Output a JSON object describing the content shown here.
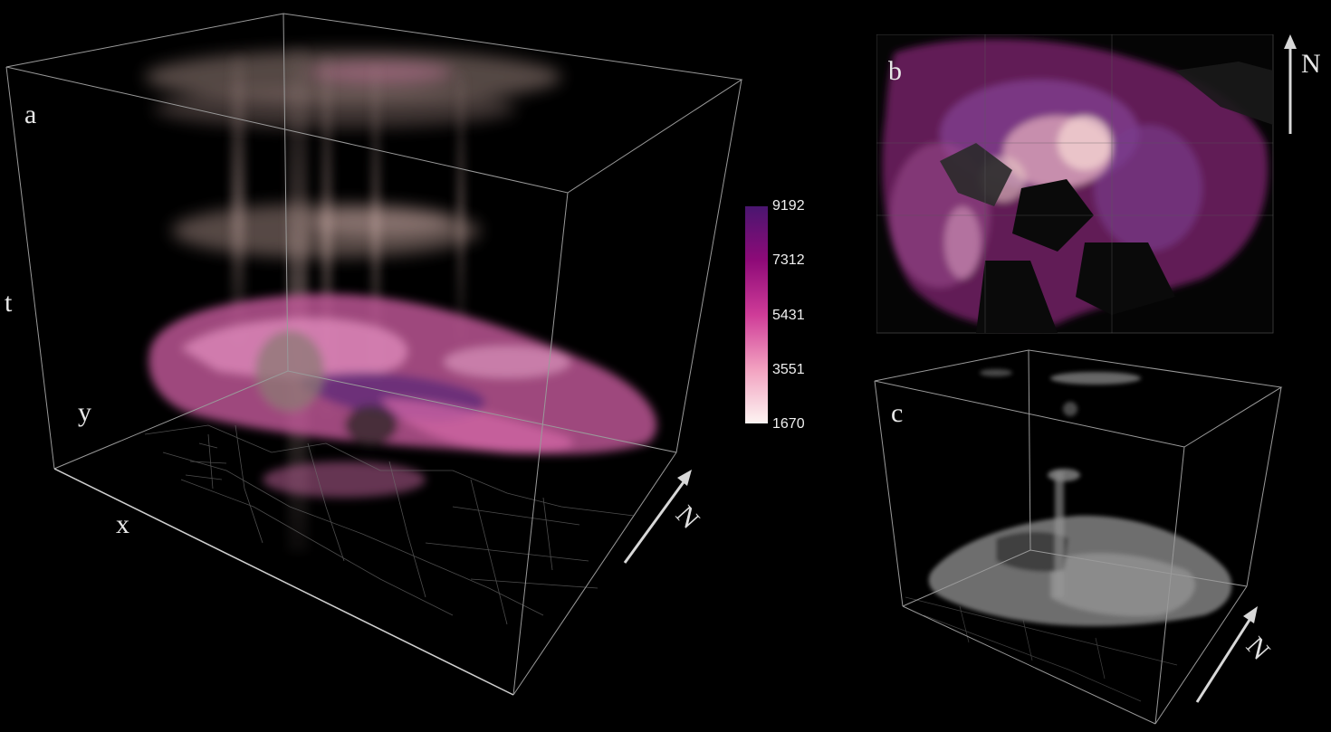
{
  "panels": {
    "a": {
      "label": "a",
      "axis_t": "t",
      "axis_y": "y",
      "axis_x": "x",
      "north": "N"
    },
    "b": {
      "label": "b",
      "north": "N"
    },
    "c": {
      "label": "c",
      "north": "N"
    }
  },
  "colorbar": {
    "ticks": [
      "9192",
      "7312",
      "5431",
      "3551",
      "1670"
    ],
    "min": 1670,
    "max": 9192,
    "colors": [
      "#4a1670",
      "#8e0a78",
      "#cf3c98",
      "#f2a1c0",
      "#fdf4f2"
    ]
  }
}
